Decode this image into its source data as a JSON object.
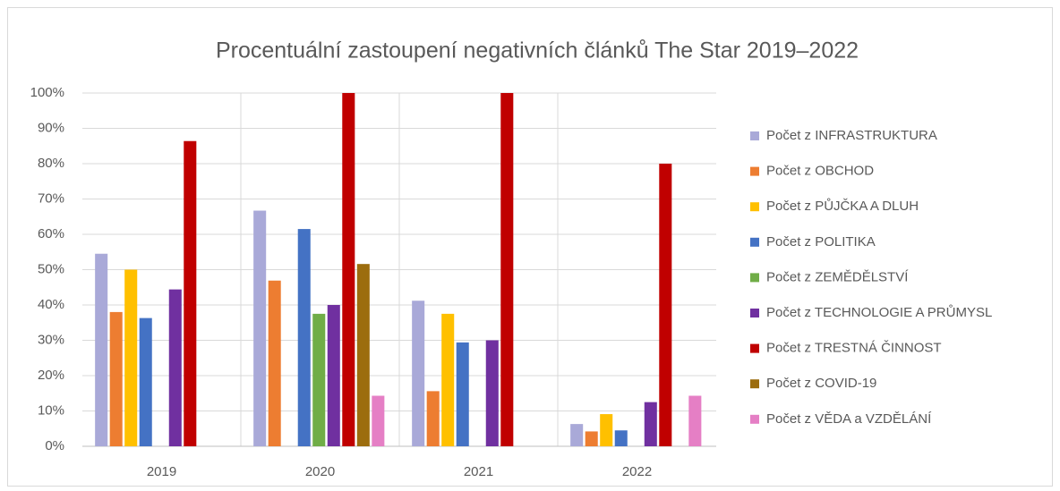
{
  "chart_data": {
    "type": "bar",
    "title": "Procentuální zastoupení negativních článků The Star 2019–2022",
    "categories": [
      "2019",
      "2020",
      "2021",
      "2022"
    ],
    "series": [
      {
        "name": "Počet z INFRASTRUKTURA",
        "color": "#a9a9d8",
        "values": [
          54.5,
          66.7,
          41.2,
          6.3
        ]
      },
      {
        "name": "Počet z OBCHOD",
        "color": "#ed7d31",
        "values": [
          38.0,
          46.9,
          15.6,
          4.2
        ]
      },
      {
        "name": "Počet z PŮJČKA A DLUH",
        "color": "#ffc000",
        "values": [
          50.0,
          null,
          37.5,
          9.1
        ]
      },
      {
        "name": "Počet z POLITIKA",
        "color": "#4472c4",
        "values": [
          36.3,
          61.5,
          29.4,
          4.5
        ]
      },
      {
        "name": "Počet z ZEMĚDĚLSTVÍ",
        "color": "#70ad47",
        "values": [
          null,
          37.5,
          null,
          null
        ]
      },
      {
        "name": "Počet z TECHNOLOGIE A PRŮMYSL",
        "color": "#7030a0",
        "values": [
          44.4,
          40.0,
          30.0,
          12.5
        ]
      },
      {
        "name": "Počet z TRESTNÁ ČINNOST",
        "color": "#c00000",
        "values": [
          86.4,
          100,
          100,
          80.0
        ]
      },
      {
        "name": "Počet z COVID-19",
        "color": "#9c6d0e",
        "values": [
          null,
          51.6,
          null,
          null
        ]
      },
      {
        "name": "Počet z VĚDA a VZDĚLÁNÍ",
        "color": "#e57fc5",
        "values": [
          null,
          14.3,
          null,
          14.3
        ]
      }
    ],
    "ylim": [
      0,
      100
    ],
    "yticks": [
      {
        "value": 0,
        "label": "0%"
      },
      {
        "value": 10,
        "label": "10%"
      },
      {
        "value": 20,
        "label": "20%"
      },
      {
        "value": 30,
        "label": "30%"
      },
      {
        "value": 40,
        "label": "40%"
      },
      {
        "value": 50,
        "label": "50%"
      },
      {
        "value": 60,
        "label": "60%"
      },
      {
        "value": 70,
        "label": "70%"
      },
      {
        "value": 80,
        "label": "80%"
      },
      {
        "value": 90,
        "label": "90%"
      },
      {
        "value": 100,
        "label": "100%"
      }
    ],
    "grid": true,
    "legend": "right"
  }
}
